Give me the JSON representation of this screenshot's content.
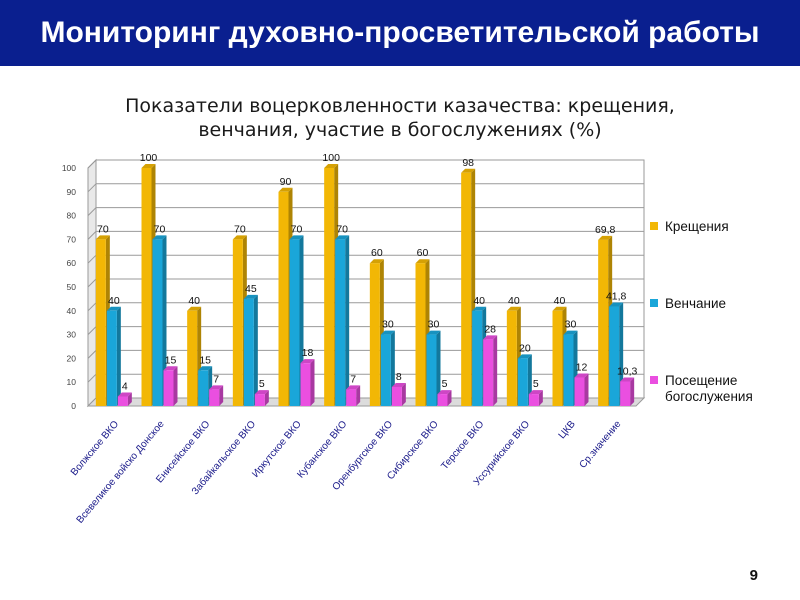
{
  "header": {
    "title": "Мониторинг духовно-просветительской работы"
  },
  "page": {
    "number": "9"
  },
  "chart_data": {
    "type": "bar",
    "title": "Показатели воцерковленности казачества: крещения, венчания, участие в богослужениях (%)",
    "title_lines": [
      "Показатели  воцерковленности казачества: крещения,",
      "венчания, участие в богослужениях (%)"
    ],
    "xlabel": "",
    "ylabel": "",
    "ylim": [
      0,
      100
    ],
    "yticks": [
      "0",
      "10",
      "20",
      "30",
      "40",
      "50",
      "60",
      "70",
      "80",
      "90",
      "100"
    ],
    "grid": true,
    "legend_position": "right",
    "categories": [
      "Волжское ВКО",
      "Всевеликое войско Донское",
      "Енисейское ВКО",
      "Забайкальское ВКО",
      "Иркутское ВКО",
      "Кубанское ВКО",
      "Оренбургское ВКО",
      "Сибирское ВКО",
      "Терское ВКО",
      "Уссурийское ВКО",
      "ЦКВ",
      "Ср.значение"
    ],
    "series": [
      {
        "name": "Крещения",
        "color": "#f2b705",
        "values": [
          70,
          100,
          40,
          70,
          90,
          100,
          60,
          60,
          98,
          40,
          40,
          69.8
        ],
        "labels": [
          "70",
          "100",
          "40",
          "70",
          "90",
          "100",
          "60",
          "60",
          "98",
          "40",
          "40",
          "69,8"
        ]
      },
      {
        "name": "Венчание",
        "color": "#1aa6d9",
        "values": [
          40,
          70,
          15,
          45,
          70,
          70,
          30,
          30,
          40,
          20,
          30,
          41.8
        ],
        "labels": [
          "40",
          "70",
          "15",
          "45",
          "70",
          "70",
          "30",
          "30",
          "40",
          "20",
          "30",
          "41,8"
        ]
      },
      {
        "name": "Посещение богослужения",
        "legend_lines": [
          "Посещение",
          "богослужения"
        ],
        "color": "#ea4fe0",
        "values": [
          4,
          15,
          7,
          5,
          18,
          7,
          8,
          5,
          28,
          5,
          12,
          10.3
        ],
        "labels": [
          "4",
          "15",
          "7",
          "5",
          "18",
          "7",
          "8",
          "5",
          "28",
          "5",
          "12",
          "10,3"
        ]
      }
    ]
  }
}
